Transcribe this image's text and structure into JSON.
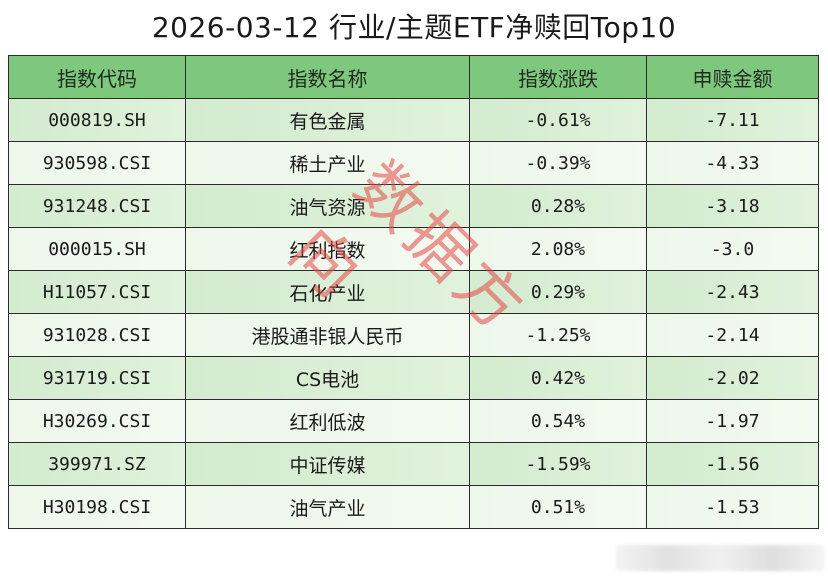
{
  "title": "2026-03-12 行业/主题ETF净赎回Top10",
  "watermark": "数据方向",
  "colors": {
    "header_bg": "#7ec87e",
    "row_odd_bg": "#d6ecd2",
    "row_even_bg": "#eff8ec",
    "border": "#2b2b2b",
    "watermark": "#e64646"
  },
  "table": {
    "headers": [
      "指数代码",
      "指数名称",
      "指数涨跌",
      "申赎金额"
    ],
    "rows": [
      {
        "code": "000819.SH",
        "name": "有色金属",
        "change": "-0.61%",
        "amount": "-7.11"
      },
      {
        "code": "930598.CSI",
        "name": "稀土产业",
        "change": "-0.39%",
        "amount": "-4.33"
      },
      {
        "code": "931248.CSI",
        "name": "油气资源",
        "change": "0.28%",
        "amount": "-3.18"
      },
      {
        "code": "000015.SH",
        "name": "红利指数",
        "change": "2.08%",
        "amount": "-3.0"
      },
      {
        "code": "H11057.CSI",
        "name": "石化产业",
        "change": "0.29%",
        "amount": "-2.43"
      },
      {
        "code": "931028.CSI",
        "name": "港股通非银人民币",
        "change": "-1.25%",
        "amount": "-2.14"
      },
      {
        "code": "931719.CSI",
        "name": "CS电池",
        "change": "0.42%",
        "amount": "-2.02"
      },
      {
        "code": "H30269.CSI",
        "name": "红利低波",
        "change": "0.54%",
        "amount": "-1.97"
      },
      {
        "code": "399971.SZ",
        "name": "中证传媒",
        "change": "-1.59%",
        "amount": "-1.56"
      },
      {
        "code": "H30198.CSI",
        "name": "油气产业",
        "change": "0.51%",
        "amount": "-1.53"
      }
    ]
  },
  "chart_data": {
    "type": "table",
    "title": "2026-03-12 行业/主题ETF净赎回Top10",
    "columns": [
      "指数代码",
      "指数名称",
      "指数涨跌",
      "申赎金额"
    ],
    "rows": [
      [
        "000819.SH",
        "有色金属",
        -0.61,
        -7.11
      ],
      [
        "930598.CSI",
        "稀土产业",
        -0.39,
        -4.33
      ],
      [
        "931248.CSI",
        "油气资源",
        0.28,
        -3.18
      ],
      [
        "000015.SH",
        "红利指数",
        2.08,
        -3.0
      ],
      [
        "H11057.CSI",
        "石化产业",
        0.29,
        -2.43
      ],
      [
        "931028.CSI",
        "港股通非银人民币",
        -1.25,
        -2.14
      ],
      [
        "931719.CSI",
        "CS电池",
        0.42,
        -2.02
      ],
      [
        "H30269.CSI",
        "红利低波",
        0.54,
        -1.97
      ],
      [
        "399971.SZ",
        "中证传媒",
        -1.59,
        -1.56
      ],
      [
        "H30198.CSI",
        "油气产业",
        0.51,
        -1.53
      ]
    ],
    "units": {
      "指数涨跌": "%"
    },
    "annotations": [
      "watermark: 数据方向"
    ]
  }
}
